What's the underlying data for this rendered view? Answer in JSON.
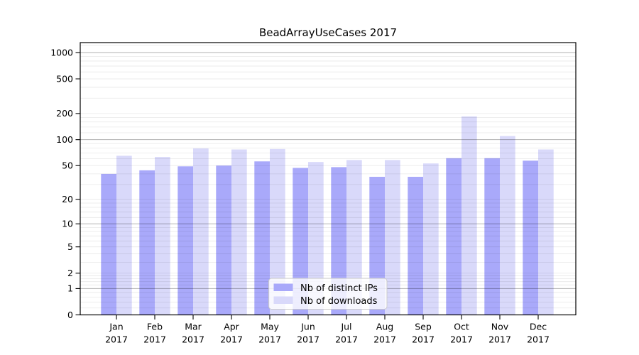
{
  "title": "BeadArrayUseCases 2017",
  "colors": {
    "ips": "#a9a9fa",
    "downloads": "#d9d9fa",
    "grid_major": "rgba(0,0,0,0.30)",
    "grid_minor": "rgba(0,0,0,0.09)",
    "axis": "#000000",
    "legend_bg": "rgba(255,255,255,0.8)",
    "legend_border": "#c9c9c9"
  },
  "legend": {
    "items": [
      {
        "label": "Nb of distinct IPs",
        "key": "ips"
      },
      {
        "label": "Nb of downloads",
        "key": "downloads"
      }
    ]
  },
  "y_axis": {
    "tick_labels": [
      "0",
      "1",
      "2",
      "5",
      "10",
      "20",
      "50",
      "100",
      "200",
      "500",
      "1000"
    ]
  },
  "x_axis": {
    "year": "2017",
    "months": [
      "Jan",
      "Feb",
      "Mar",
      "Apr",
      "May",
      "Jun",
      "Jul",
      "Aug",
      "Sep",
      "Oct",
      "Nov",
      "Dec"
    ]
  },
  "chart_data": {
    "type": "bar",
    "title": "BeadArrayUseCases 2017",
    "categories": [
      "Jan 2017",
      "Feb 2017",
      "Mar 2017",
      "Apr 2017",
      "May 2017",
      "Jun 2017",
      "Jul 2017",
      "Aug 2017",
      "Sep 2017",
      "Oct 2017",
      "Nov 2017",
      "Dec 2017"
    ],
    "series": [
      {
        "name": "Nb of distinct IPs",
        "color": "#a9a9fa",
        "values": [
          40,
          44,
          49,
          50,
          56,
          47,
          48,
          37,
          37,
          61,
          61,
          57
        ]
      },
      {
        "name": "Nb of downloads",
        "color": "#d9d9fa",
        "values": [
          65,
          63,
          79,
          77,
          78,
          55,
          58,
          58,
          53,
          185,
          110,
          77
        ]
      }
    ],
    "yscale": "log1p",
    "y_ticks": [
      0,
      1,
      2,
      5,
      10,
      20,
      50,
      100,
      200,
      500,
      1000
    ],
    "ylim": [
      0,
      1300
    ],
    "grid": true,
    "legend_position": "lower center"
  }
}
